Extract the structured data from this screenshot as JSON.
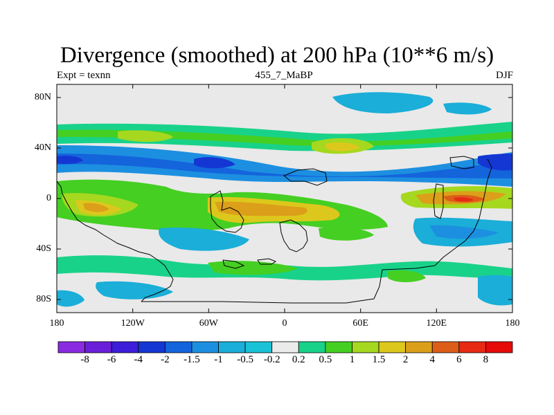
{
  "title": "Divergence (smoothed) at 200 hPa (10**6 m/s)",
  "subtitle_left": "Expt = texnn",
  "subtitle_center": "455_7_MaBP",
  "subtitle_right": "DJF",
  "map": {
    "lat_ticks": [
      "80N",
      "40N",
      "0",
      "40S",
      "80S"
    ],
    "lon_ticks": [
      "180",
      "120W",
      "60W",
      "0",
      "60E",
      "120E",
      "180"
    ],
    "background_color": "#e9e9e9"
  },
  "colorbar": {
    "labels": [
      "-8",
      "-6",
      "-4",
      "-2",
      "-1.5",
      "-1",
      "-0.5",
      "-0.2",
      "0.2",
      "0.5",
      "1",
      "1.5",
      "2",
      "4",
      "6",
      "8"
    ],
    "colors": [
      "#8a2be2",
      "#6a1fd8",
      "#3d1dd9",
      "#1437d3",
      "#1464dc",
      "#1d8fe0",
      "#1aaed8",
      "#19c2d6",
      "#ebebeb",
      "#19d28a",
      "#45cf22",
      "#a5d81f",
      "#dcc81c",
      "#dc9f1a",
      "#dc5d18",
      "#e62a14",
      "#e60a0a"
    ]
  }
}
